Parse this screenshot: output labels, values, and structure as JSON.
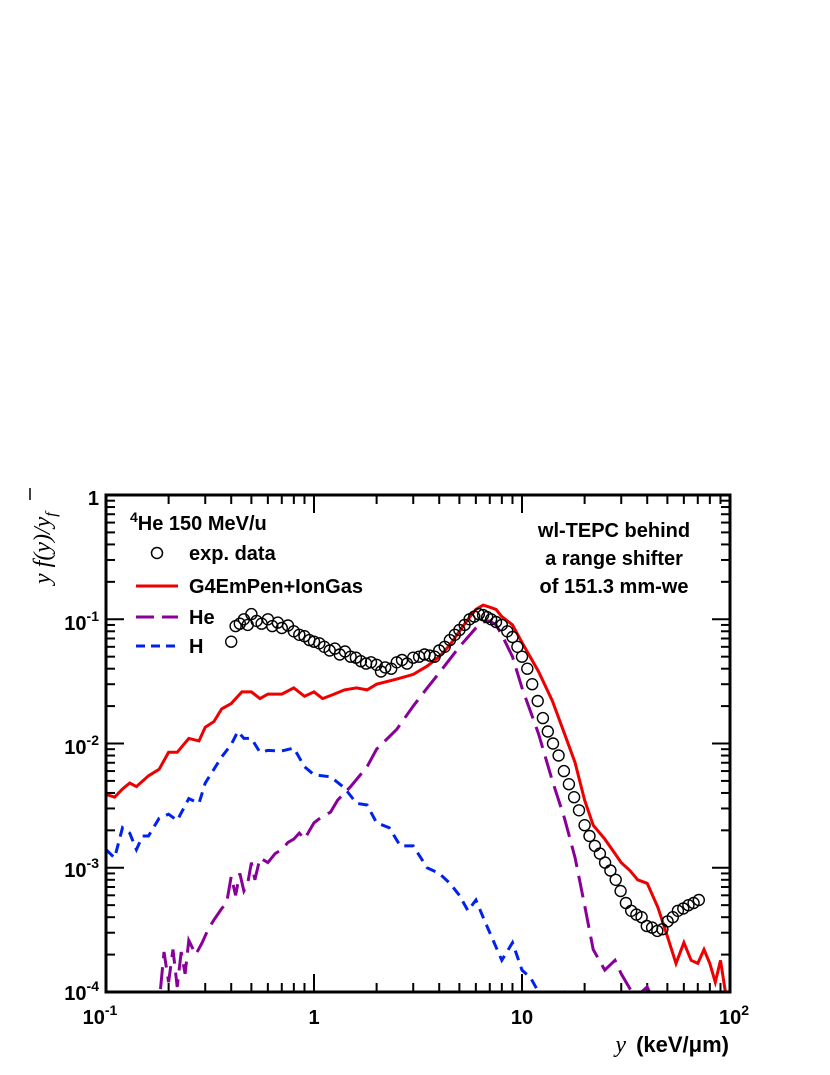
{
  "chart_data": {
    "type": "line",
    "x_scale": "log",
    "y_scale": "log",
    "xlim": [
      0.1,
      100
    ],
    "ylim": [
      0.0001,
      1
    ],
    "x_ticks": [
      {
        "base": "10",
        "exp": "-1"
      },
      {
        "base": "1",
        "exp": ""
      },
      {
        "base": "10",
        "exp": ""
      },
      {
        "base": "10",
        "exp": "2"
      }
    ],
    "y_ticks": [
      {
        "base": "10",
        "exp": "-4"
      },
      {
        "base": "10",
        "exp": "-3"
      },
      {
        "base": "10",
        "exp": "-2"
      },
      {
        "base": "10",
        "exp": "-1"
      },
      {
        "base": "1",
        "exp": ""
      }
    ],
    "xlabel": {
      "var": "y",
      "unit": "(keV/μm)"
    },
    "ylabel": {
      "y": "y",
      "f": "f",
      "paren_open": "(",
      "paren_close": ")",
      "slash": "/",
      "ybar": "y",
      "sub": "f"
    },
    "legend": {
      "title_sup": "4",
      "title": "He 150 MeV/u",
      "entries": [
        "exp. data",
        "G4EmPen+IonGas",
        "He",
        "H"
      ]
    },
    "annotation": [
      "wl-TEPC behind",
      "a range shifter",
      "of 151.3 mm-we"
    ],
    "colors": {
      "data": "#000000",
      "total": "#ee0000",
      "he": "#880099",
      "h": "#0022ee"
    },
    "series": [
      {
        "name": "G4EmPen+IonGas",
        "style": "solid",
        "x": [
          0.1,
          0.11,
          0.12,
          0.13,
          0.14,
          0.16,
          0.18,
          0.2,
          0.22,
          0.25,
          0.28,
          0.3,
          0.33,
          0.36,
          0.4,
          0.45,
          0.5,
          0.55,
          0.6,
          0.7,
          0.8,
          0.9,
          1.0,
          1.1,
          1.25,
          1.4,
          1.6,
          1.8,
          2.0,
          2.5,
          3.0,
          3.5,
          4.0,
          4.5,
          5.0,
          5.5,
          6.0,
          6.5,
          7.0,
          7.5,
          8.0,
          9.0,
          10.0,
          12.0,
          14.0,
          16.0,
          18.0,
          20.0,
          22.0,
          25.0,
          28.0,
          30.0,
          33.0,
          36.0,
          40.0,
          45.0,
          50.0,
          55.0,
          60.0,
          65.0,
          70.0,
          75.0,
          80.0,
          85.0,
          90.0,
          95.0
        ],
        "values": [
          0.0039,
          0.0037,
          0.0043,
          0.0048,
          0.0045,
          0.0055,
          0.0062,
          0.0085,
          0.0085,
          0.011,
          0.0105,
          0.0135,
          0.015,
          0.019,
          0.021,
          0.026,
          0.026,
          0.023,
          0.025,
          0.025,
          0.028,
          0.024,
          0.026,
          0.023,
          0.025,
          0.027,
          0.028,
          0.027,
          0.03,
          0.033,
          0.036,
          0.042,
          0.05,
          0.062,
          0.08,
          0.1,
          0.12,
          0.13,
          0.125,
          0.12,
          0.105,
          0.09,
          0.065,
          0.038,
          0.022,
          0.012,
          0.007,
          0.0035,
          0.0022,
          0.0017,
          0.0013,
          0.0011,
          0.00095,
          0.0008,
          0.00075,
          0.00048,
          0.00028,
          0.00017,
          0.00025,
          0.00018,
          0.00017,
          0.00022,
          0.00017,
          0.00012,
          0.00018,
          0.0001
        ]
      },
      {
        "name": "He",
        "style": "longdash",
        "x": [
          0.16,
          0.18,
          0.19,
          0.2,
          0.21,
          0.22,
          0.23,
          0.24,
          0.25,
          0.27,
          0.29,
          0.31,
          0.33,
          0.36,
          0.38,
          0.4,
          0.42,
          0.44,
          0.46,
          0.48,
          0.5,
          0.52,
          0.55,
          0.6,
          0.65,
          0.7,
          0.75,
          0.8,
          0.85,
          0.9,
          1.0,
          1.1,
          1.2,
          1.3,
          1.5,
          1.8,
          2.0,
          2.5,
          3.0,
          3.5,
          4.0,
          5.0,
          6.0,
          6.5,
          7.0,
          7.5,
          8.0,
          9.0,
          10.0,
          12.0,
          14.0,
          16.0,
          18.0,
          20.0,
          22.0,
          25.0,
          28.0,
          30.0,
          35.0,
          40.0,
          45.0,
          50.0
        ],
        "values": [
          0.0001,
          8e-05,
          0.00021,
          0.00012,
          0.00022,
          0.00011,
          0.00021,
          0.00014,
          0.00026,
          0.0002,
          0.00025,
          0.00032,
          0.00038,
          0.00047,
          0.00052,
          0.00085,
          0.0006,
          0.0009,
          0.00065,
          0.00075,
          0.0011,
          0.0008,
          0.0012,
          0.0011,
          0.0013,
          0.0014,
          0.0016,
          0.0017,
          0.0019,
          0.0017,
          0.0023,
          0.0026,
          0.0028,
          0.0035,
          0.0045,
          0.0065,
          0.009,
          0.013,
          0.02,
          0.028,
          0.037,
          0.06,
          0.085,
          0.095,
          0.097,
          0.09,
          0.075,
          0.05,
          0.028,
          0.012,
          0.005,
          0.0025,
          0.0012,
          0.0005,
          0.00022,
          0.00015,
          0.00018,
          0.00014,
          9e-05,
          0.00011,
          7e-05,
          9e-05
        ]
      },
      {
        "name": "H",
        "style": "dash",
        "x": [
          0.1,
          0.11,
          0.12,
          0.13,
          0.14,
          0.15,
          0.16,
          0.18,
          0.2,
          0.22,
          0.25,
          0.28,
          0.3,
          0.33,
          0.36,
          0.4,
          0.43,
          0.46,
          0.5,
          0.55,
          0.6,
          0.7,
          0.8,
          0.9,
          1.0,
          1.2,
          1.4,
          1.6,
          1.8,
          2.0,
          2.3,
          2.6,
          3.0,
          3.5,
          4.0,
          4.5,
          5.0,
          5.5,
          6.0,
          6.5,
          7.0,
          8.0,
          9.0,
          10.0,
          11.0,
          12.0,
          14.0,
          16.0,
          18.0
        ],
        "values": [
          0.0014,
          0.0012,
          0.0021,
          0.0019,
          0.0014,
          0.0018,
          0.0018,
          0.0025,
          0.0027,
          0.0024,
          0.0036,
          0.0033,
          0.0048,
          0.0062,
          0.0078,
          0.0098,
          0.0125,
          0.011,
          0.011,
          0.0085,
          0.0088,
          0.0087,
          0.0092,
          0.0065,
          0.0056,
          0.0054,
          0.0044,
          0.0033,
          0.0032,
          0.0023,
          0.0021,
          0.0015,
          0.0015,
          0.001,
          0.0009,
          0.00075,
          0.0006,
          0.00045,
          0.00055,
          0.0004,
          0.0003,
          0.00018,
          0.00025,
          0.00015,
          0.00013,
          0.0001,
          9e-05,
          0.0001,
          8e-05
        ]
      },
      {
        "name": "exp. data",
        "style": "markers",
        "x": [
          0.4,
          0.42,
          0.44,
          0.46,
          0.48,
          0.5,
          0.53,
          0.56,
          0.6,
          0.63,
          0.67,
          0.7,
          0.75,
          0.8,
          0.85,
          0.9,
          0.95,
          1.0,
          1.06,
          1.12,
          1.19,
          1.26,
          1.33,
          1.41,
          1.5,
          1.59,
          1.68,
          1.78,
          1.88,
          2.0,
          2.1,
          2.2,
          2.35,
          2.5,
          2.65,
          2.8,
          3.0,
          3.2,
          3.4,
          3.6,
          3.8,
          4.0,
          4.25,
          4.5,
          4.75,
          5.0,
          5.3,
          5.6,
          5.9,
          6.2,
          6.5,
          6.8,
          7.1,
          7.5,
          8.0,
          8.5,
          9.0,
          9.5,
          10.0,
          10.6,
          11.2,
          11.9,
          12.6,
          13.3,
          14.1,
          15.0,
          15.9,
          16.8,
          17.8,
          18.8,
          20.0,
          21.1,
          22.4,
          23.7,
          25.1,
          26.6,
          28.2,
          29.8,
          31.6,
          33.5,
          35.5,
          37.6,
          39.8,
          42.2,
          44.7,
          47.3,
          50.1,
          53.1,
          56.2,
          59.6,
          63.1,
          66.8,
          70.8
        ],
        "values": [
          0.066,
          0.088,
          0.092,
          0.1,
          0.09,
          0.11,
          0.097,
          0.092,
          0.1,
          0.088,
          0.094,
          0.085,
          0.089,
          0.08,
          0.075,
          0.073,
          0.068,
          0.066,
          0.064,
          0.06,
          0.056,
          0.058,
          0.052,
          0.055,
          0.05,
          0.049,
          0.046,
          0.044,
          0.045,
          0.043,
          0.038,
          0.041,
          0.04,
          0.045,
          0.047,
          0.044,
          0.049,
          0.05,
          0.052,
          0.051,
          0.05,
          0.056,
          0.06,
          0.068,
          0.075,
          0.082,
          0.09,
          0.1,
          0.105,
          0.11,
          0.108,
          0.104,
          0.1,
          0.095,
          0.09,
          0.08,
          0.072,
          0.06,
          0.05,
          0.04,
          0.03,
          0.022,
          0.016,
          0.0125,
          0.01,
          0.008,
          0.006,
          0.0047,
          0.0037,
          0.0029,
          0.0022,
          0.0018,
          0.0015,
          0.0013,
          0.0011,
          0.00095,
          0.0008,
          0.00065,
          0.00052,
          0.00045,
          0.00042,
          0.0004,
          0.00034,
          0.00033,
          0.00031,
          0.00032,
          0.00037,
          0.0004,
          0.00045,
          0.00047,
          0.0005,
          0.00052,
          0.00055
        ]
      }
    ]
  }
}
